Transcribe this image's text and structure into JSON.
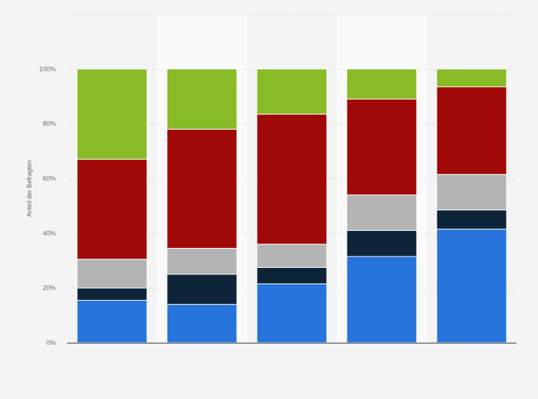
{
  "chart_data": {
    "type": "bar",
    "stacked": true,
    "percent": true,
    "categories": [
      "",
      "",
      "",
      "",
      ""
    ],
    "series": [
      {
        "color": "#2674dc",
        "values": [
          15.5,
          14.0,
          21.5,
          31.5,
          41.5
        ]
      },
      {
        "color": "#0e2439",
        "values": [
          4.5,
          11.0,
          6.0,
          9.5,
          7.0
        ]
      },
      {
        "color": "#b4b4b4",
        "values": [
          10.5,
          9.5,
          8.5,
          13.0,
          13.0
        ]
      },
      {
        "color": "#a10808",
        "values": [
          36.5,
          43.5,
          47.5,
          35.0,
          32.0
        ]
      },
      {
        "color": "#88bb26",
        "values": [
          33.0,
          22.0,
          16.5,
          11.0,
          6.5
        ]
      }
    ],
    "ylabel": "Anteil der Befragten",
    "xlabel": "",
    "ylim": [
      0,
      120
    ],
    "yticks": [
      0,
      20,
      40,
      60,
      80,
      100
    ],
    "ytick_labels": [
      "0%",
      "20%",
      "40%",
      "60%",
      "80%",
      "100%"
    ],
    "grid": true,
    "alternating_band_color": "#fafafa",
    "axis_color": "#333333"
  }
}
